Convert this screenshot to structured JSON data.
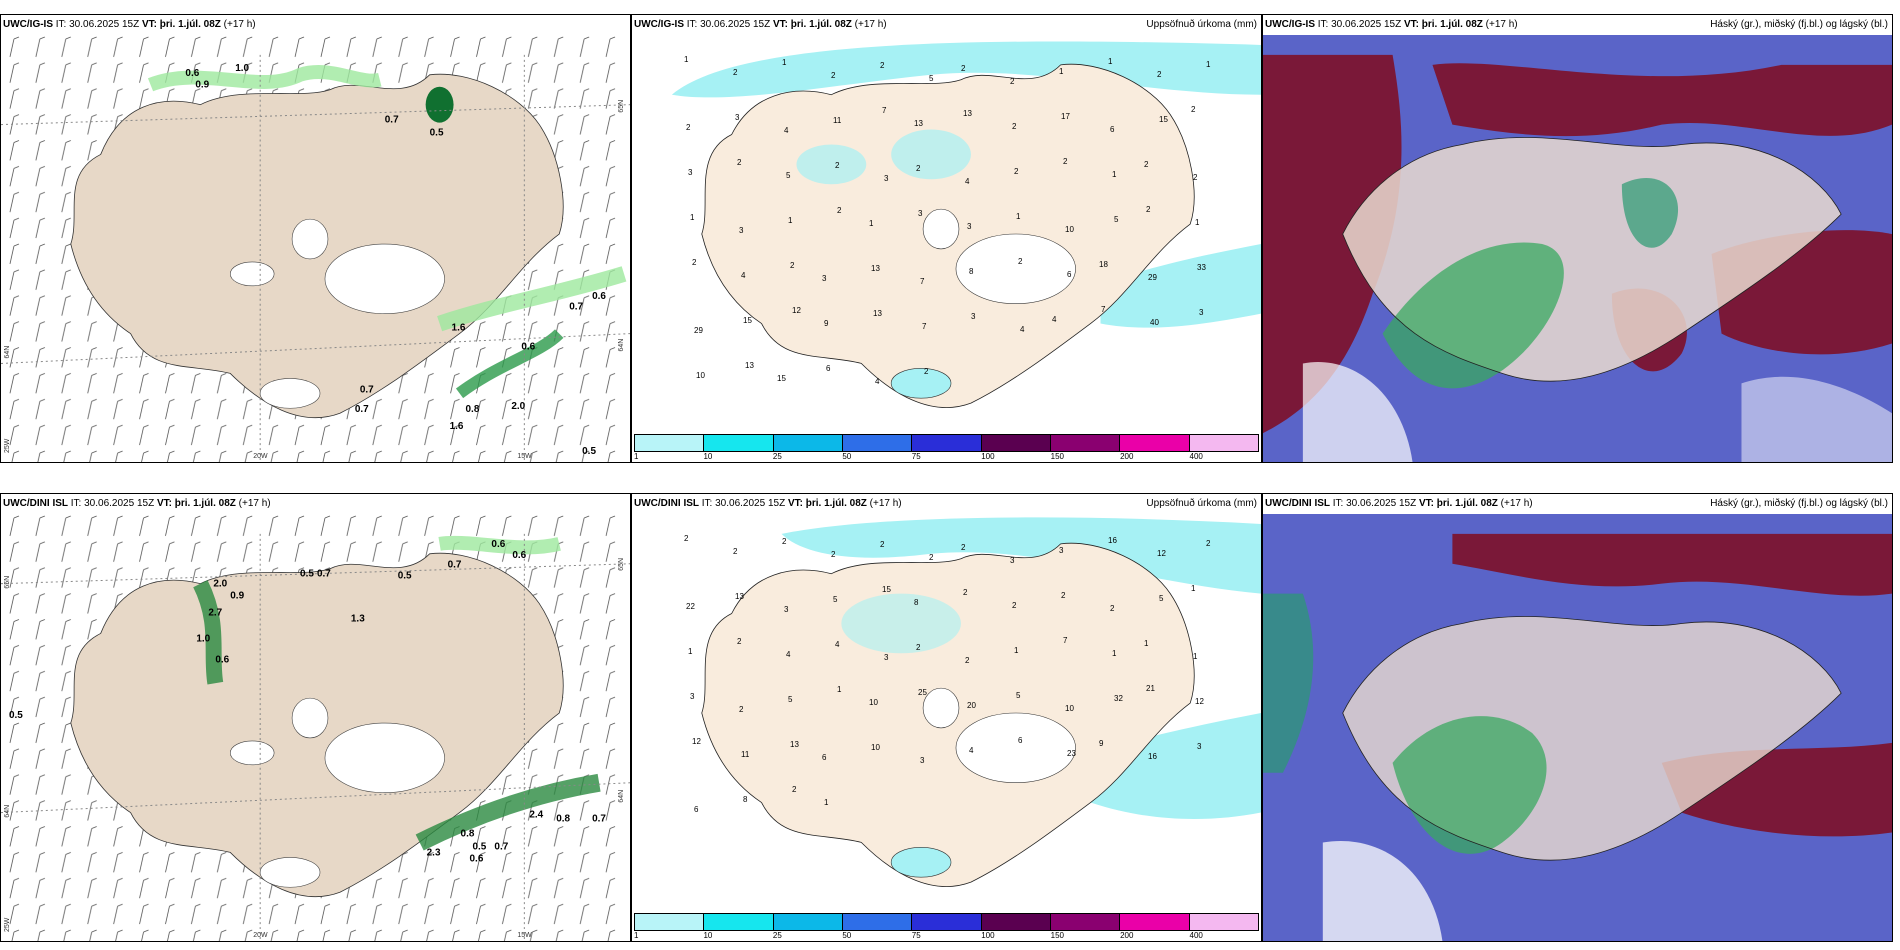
{
  "rows": [
    {
      "model": "UWC/IG-IS",
      "it": "IT: 30.06.2025 15Z",
      "vt_label": "VT:",
      "vt": "þri. 1.júl. 08Z",
      "lead": "(+17 h)",
      "wind_panel": {
        "values": [
          "0.6",
          "0.9",
          "1.0",
          "0.7",
          "0.5",
          "1.6",
          "0.7",
          "0.6",
          "0.6",
          "0.7",
          "0.7",
          "0.8",
          "2.0",
          "1.6",
          "0.5"
        ],
        "lat_left": "65N",
        "lat_right": "65N",
        "lat_right_low": "64N",
        "lat_left_low": "64N",
        "lon_25": "25W",
        "lon_20": "20W",
        "lon_15": "15W"
      },
      "precip_panel": {
        "title": "Uppsöfnuð úrkoma (mm)",
        "values": [
          "1",
          "2",
          "1",
          "2",
          "2",
          "5",
          "2",
          "2",
          "1",
          "1",
          "2",
          "1",
          "2",
          "3",
          "4",
          "11",
          "7",
          "13",
          "13",
          "2",
          "17",
          "6",
          "15",
          "2",
          "3",
          "2",
          "5",
          "2",
          "3",
          "2",
          "4",
          "2",
          "2",
          "1",
          "2",
          "2",
          "1",
          "3",
          "1",
          "2",
          "1",
          "3",
          "3",
          "1",
          "10",
          "5",
          "2",
          "1",
          "2",
          "4",
          "2",
          "3",
          "13",
          "7",
          "8",
          "2",
          "6",
          "18",
          "29",
          "33",
          "29",
          "15",
          "12",
          "9",
          "13",
          "7",
          "3",
          "4",
          "4",
          "7",
          "40",
          "3",
          "10",
          "13",
          "15",
          "6",
          "4",
          "2"
        ]
      },
      "cloud_panel": {
        "title": "Háský (gr.), miðský (fj.bl.) og lágský (bl.)"
      }
    },
    {
      "model": "UWC/DINI ISL",
      "it": "IT: 30.06.2025 15Z",
      "vt_label": "VT:",
      "vt": "þri. 1.júl. 08Z",
      "lead": "(+17 h)",
      "wind_panel": {
        "values": [
          "0.6",
          "0.6",
          "2.0",
          "0.9",
          "2.7",
          "1.0",
          "0.6",
          "0.5",
          "0.7",
          "0.5",
          "0.7",
          "1.3",
          "0.5",
          "0.8",
          "0.5",
          "0.6",
          "0.7",
          "2.3",
          "2.4",
          "0.8",
          "0.7"
        ],
        "lat_left": "65N",
        "lat_right": "65N",
        "lat_right_low": "64N",
        "lat_left_low": "64N",
        "lon_25": "25W",
        "lon_20": "20W",
        "lon_15": "15W"
      },
      "precip_panel": {
        "title": "Uppsöfnuð úrkoma (mm)",
        "values": [
          "2",
          "2",
          "2",
          "2",
          "2",
          "2",
          "2",
          "3",
          "3",
          "16",
          "12",
          "2",
          "22",
          "13",
          "3",
          "5",
          "15",
          "8",
          "2",
          "2",
          "2",
          "2",
          "5",
          "1",
          "1",
          "2",
          "4",
          "4",
          "3",
          "2",
          "2",
          "1",
          "7",
          "1",
          "1",
          "1",
          "3",
          "2",
          "5",
          "1",
          "10",
          "25",
          "20",
          "5",
          "10",
          "32",
          "21",
          "12",
          "12",
          "11",
          "13",
          "6",
          "10",
          "3",
          "4",
          "6",
          "23",
          "9",
          "16",
          "3",
          "6",
          "8",
          "2",
          "1"
        ]
      },
      "cloud_panel": {
        "title": "Háský (gr.), miðský (fj.bl.) og lágský (bl.)"
      }
    }
  ],
  "legend": {
    "ticks": [
      "1",
      "10",
      "25",
      "50",
      "75",
      "100",
      "150",
      "200",
      "400"
    ],
    "colors": [
      "#b8f4f8",
      "#16e6ee",
      "#0cb8e8",
      "#2e6ee8",
      "#2a2ed8",
      "#5a0050",
      "#8a0070",
      "#ea00a8",
      "#f4b8f0"
    ]
  },
  "palette": {
    "land": "#eee4d7",
    "land_wind": "#e7d8c7",
    "precip_light": "#a6f1f4",
    "green": "#9ee89e",
    "dark_green": "#107030",
    "maroon": "#7a1838",
    "blue": "#5a64c8"
  }
}
